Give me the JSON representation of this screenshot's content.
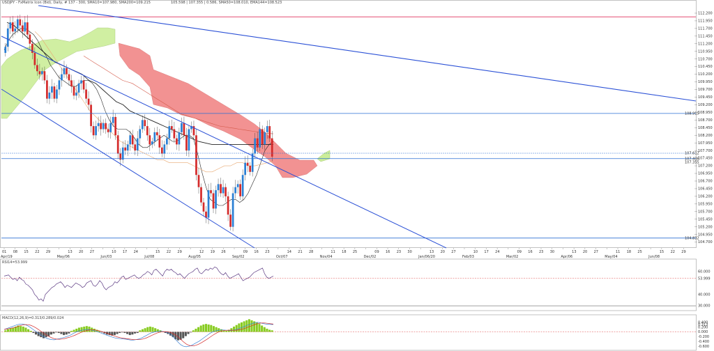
{
  "header": {
    "main": "USDJPY - FxMatrix Icon (Bid), Daily, # 137 - 300, SMA10=107.980, SMA200=109.215",
    "main_right": "105.598 | 107.355 | 0.586, SMA50=108.010, EMA144=108.523",
    "rsi": "RSI14=53.999",
    "macd": "MACD(12,26,9)=0.313/0.289/0.024"
  },
  "colors": {
    "candle_up": "#2a7fd4",
    "candle_down": "#d42a2a",
    "cloud_bull": "#ccee99",
    "cloud_bear": "#f08080",
    "trendline": "#2a50d6",
    "hline_red": "#e0305a",
    "hline_blue": "#2a6fd4",
    "rsi_line": "#5c3a82",
    "macd_line": "#3a7fd4",
    "signal_line": "#d42a2a",
    "hist_up": "#88cc22",
    "hist_down": "#555555"
  },
  "chart_data": [
    {
      "type": "candlestick",
      "name": "price",
      "date_labels": [
        "01",
        "08",
        "15",
        "22",
        "29",
        "May/06",
        "13",
        "20",
        "27",
        "Jun/03",
        "10",
        "17",
        "24",
        "Jul/08",
        "15",
        "22",
        "29",
        "Aug/05",
        "12",
        "19",
        "26",
        "Sep/02",
        "09",
        "16",
        "23",
        "Oct/07",
        "14",
        "21",
        "28",
        "Nov/04",
        "11",
        "18",
        "25",
        "Dec/02",
        "09",
        "16",
        "23",
        "30",
        "Jan/06/20",
        "13",
        "20",
        "27",
        "Feb/03",
        "10",
        "17",
        "24",
        "Mar/02",
        "09",
        "16",
        "23",
        "30",
        "Apr/06",
        "13",
        "20",
        "27",
        "May/04",
        "11",
        "18",
        "25",
        "Jun/08",
        "15",
        "22",
        "29"
      ],
      "x_range_label": "Apr/19",
      "y_ticks": [
        112.2,
        111.95,
        111.7,
        111.45,
        111.2,
        110.95,
        110.7,
        110.45,
        110.2,
        109.95,
        109.7,
        109.45,
        109.2,
        108.95,
        108.7,
        108.45,
        108.2,
        107.95,
        107.7,
        107.45,
        107.2,
        106.95,
        106.7,
        106.45,
        106.2,
        105.95,
        105.7,
        105.45,
        105.2,
        104.95,
        104.7
      ],
      "ylim": [
        104.6,
        112.45
      ],
      "price_labels": [
        "108.915",
        "107.612",
        "107.355",
        "107.436",
        "104.832"
      ],
      "closes": [
        111.1,
        111.7,
        111.9,
        111.6,
        111.7,
        112.0,
        111.8,
        111.6,
        111.9,
        111.5,
        111.2,
        110.9,
        110.5,
        110.3,
        110.2,
        110.3,
        110.0,
        109.4,
        109.6,
        109.8,
        109.4,
        109.7,
        110.0,
        110.2,
        110.4,
        110.2,
        110.0,
        109.8,
        109.5,
        109.6,
        109.9,
        110.0,
        109.7,
        109.4,
        109.2,
        108.5,
        108.2,
        108.5,
        108.6,
        108.4,
        108.6,
        108.4,
        108.3,
        108.6,
        108.8,
        108.2,
        107.6,
        107.4,
        107.8,
        107.7,
        107.9,
        108.2,
        107.9,
        107.7,
        108.1,
        108.4,
        108.7,
        108.5,
        108.2,
        107.9,
        108.0,
        108.3,
        108.2,
        107.8,
        107.6,
        107.9,
        108.1,
        108.5,
        108.4,
        108.1,
        107.9,
        108.3,
        108.6,
        108.2,
        107.7,
        108.4,
        108.5,
        108.2,
        106.9,
        106.5,
        106.0,
        105.7,
        105.5,
        106.4,
        106.3,
        105.8,
        106.4,
        106.6,
        106.3,
        106.5,
        106.2,
        105.6,
        105.2,
        106.3,
        106.5,
        106.6,
        106.2,
        106.9,
        107.3,
        107.2,
        107.0,
        107.6,
        108.1,
        107.8,
        108.4,
        107.9,
        108.3,
        108.5,
        108.1,
        107.5
      ],
      "sma_short": [
        111.0,
        111.3,
        111.5,
        111.6,
        111.7,
        111.7,
        111.6,
        111.5,
        111.3,
        111.0,
        110.8,
        110.5,
        110.3,
        110.1,
        110.0,
        109.9,
        109.8,
        109.8,
        109.9,
        110.0,
        110.0,
        109.9,
        109.7,
        109.4,
        109.0,
        108.7,
        108.5,
        108.4,
        108.4,
        108.4,
        108.3,
        108.1,
        107.9,
        107.8,
        107.8,
        107.9,
        108.0,
        108.1,
        108.2,
        108.1,
        108.0,
        108.0,
        108.1,
        108.2,
        108.2,
        108.1,
        107.6,
        107.0,
        106.5,
        106.1,
        106.0,
        105.9,
        105.9,
        106.0,
        106.1,
        106.1,
        106.0,
        106.1,
        106.3,
        106.6,
        106.9,
        107.3,
        107.7,
        107.9,
        108.0
      ],
      "sma_long": [
        111.9,
        111.8,
        111.6,
        111.4,
        111.2,
        111.0,
        110.8,
        110.6,
        110.5,
        110.4,
        110.3,
        110.2,
        110.0,
        109.9,
        109.7,
        109.5,
        109.3,
        109.2,
        109.0,
        108.9,
        108.8,
        108.7,
        108.6,
        108.5,
        108.4,
        108.3,
        108.2,
        108.1,
        108.0,
        107.95,
        107.9,
        107.9,
        107.9,
        107.9,
        107.9,
        107.9,
        107.9,
        107.9,
        107.9,
        107.9
      ],
      "ema_a": [
        110.8,
        110.7,
        110.6,
        110.5,
        110.4,
        110.3,
        110.2,
        110.1,
        110.0,
        109.95,
        109.9,
        109.8,
        109.7,
        109.6,
        109.5,
        109.4,
        109.3,
        109.2,
        109.1,
        109.0,
        108.9,
        108.85,
        108.8,
        108.75,
        108.7,
        108.65,
        108.6,
        108.55,
        108.5,
        108.48,
        108.45,
        108.43,
        108.4,
        108.38,
        108.35,
        108.33,
        108.3,
        108.28,
        108.26,
        108.25
      ],
      "ema_b": [
        111.6,
        111.4,
        111.1,
        110.8,
        110.5,
        110.2,
        109.9,
        109.6,
        109.3,
        109.0,
        108.8,
        108.6,
        108.4,
        108.2,
        108.0,
        107.9,
        107.8,
        107.7,
        107.6,
        107.5,
        107.4,
        107.4,
        107.3,
        107.3,
        107.3,
        107.3,
        107.2,
        107.1,
        107.0,
        107.0,
        107.1,
        107.2,
        107.2,
        107.3,
        107.3,
        107.2,
        107.2,
        107.25,
        107.3,
        107.35
      ]
    },
    {
      "type": "line",
      "name": "rsi",
      "y_ticks": [
        60.0,
        53.999,
        40.0,
        30.0
      ],
      "y_tick_labels": [
        "60.000",
        "53.999",
        "40.000",
        "30.000"
      ],
      "ylim": [
        27,
        66
      ],
      "values": [
        56,
        56.5,
        57,
        55,
        53,
        54,
        52,
        55,
        53,
        52,
        49,
        48,
        46,
        44,
        40,
        38,
        35,
        36,
        34,
        40,
        42,
        44,
        46,
        47,
        49,
        50,
        51,
        49,
        46,
        48,
        47,
        46,
        48,
        50,
        49,
        48,
        46,
        47,
        50,
        51,
        52,
        48,
        47,
        49,
        52,
        50,
        46,
        44,
        46,
        47,
        48,
        51,
        50,
        52,
        55,
        56,
        53,
        54,
        55,
        56,
        57,
        55,
        54,
        55,
        57,
        58,
        60,
        59,
        57,
        61,
        62,
        60,
        58,
        56,
        60,
        62,
        61,
        62,
        60,
        59,
        57,
        58,
        56,
        54,
        56,
        58,
        59,
        60,
        62,
        63,
        59,
        58,
        60,
        62,
        61,
        63,
        62,
        64,
        63,
        60,
        58,
        57,
        59,
        56,
        54,
        55,
        56,
        57,
        58,
        55,
        52,
        53,
        54,
        55,
        57,
        59,
        60,
        61,
        62,
        63,
        58,
        55,
        54,
        55,
        56
      ]
    },
    {
      "type": "bar",
      "name": "macd",
      "y_ticks": [
        0.4,
        0.313,
        0.2,
        0.0,
        -0.2,
        -0.4,
        -0.6
      ],
      "y_tick_labels": [
        "0.400",
        "0.313",
        "0.200",
        "0.000",
        "-0.200",
        "-0.400",
        "-0.600"
      ],
      "ylim": [
        -0.68,
        0.48
      ],
      "hist": [
        0.03,
        0.05,
        0.07,
        0.08,
        0.1,
        0.12,
        0.11,
        0.1,
        0.08,
        0.05,
        0.02,
        -0.02,
        -0.05,
        -0.08,
        -0.1,
        -0.12,
        -0.1,
        -0.08,
        -0.05,
        -0.03,
        -0.01,
        -0.02,
        -0.04,
        -0.06,
        -0.05,
        -0.03,
        0.02,
        0.04,
        0.06,
        0.08,
        0.09,
        0.1,
        0.11,
        0.1,
        0.08,
        0.06,
        0.04,
        0.02,
        -0.01,
        -0.03,
        -0.05,
        -0.06,
        -0.07,
        -0.06,
        -0.04,
        -0.02,
        -0.01,
        -0.02,
        -0.04,
        -0.06,
        -0.05,
        -0.03,
        -0.02,
        0.03,
        0.05,
        0.07,
        0.09,
        0.1,
        0.09,
        0.07,
        0.05,
        0.03,
        0.01,
        -0.02,
        -0.04,
        -0.07,
        -0.1,
        -0.14,
        -0.16,
        -0.15,
        -0.12,
        -0.08,
        -0.04,
        -0.01,
        0.03,
        0.06,
        0.09,
        0.12,
        0.14,
        0.15,
        0.14,
        0.13,
        0.11,
        0.09,
        0.07,
        0.05,
        0.03,
        0.02,
        0.04,
        0.07,
        0.1,
        0.13,
        0.16,
        0.18,
        0.2,
        0.22,
        0.24,
        0.22,
        0.2,
        0.18,
        0.15,
        0.12,
        0.09,
        0.06,
        0.04,
        0.03
      ],
      "macd": [
        0.1,
        0.14,
        0.18,
        0.22,
        0.26,
        0.3,
        0.32,
        0.33,
        0.3,
        0.25,
        0.18,
        0.1,
        0.02,
        -0.06,
        -0.14,
        -0.2,
        -0.26,
        -0.3,
        -0.32,
        -0.33,
        -0.3,
        -0.28,
        -0.25,
        -0.22,
        -0.18,
        -0.14,
        -0.08,
        -0.02,
        0.03,
        0.06,
        0.08,
        0.1,
        0.1,
        0.08,
        0.05,
        0.02,
        -0.02,
        -0.06,
        -0.1,
        -0.14,
        -0.18,
        -0.22,
        -0.25,
        -0.27,
        -0.28,
        -0.29,
        -0.3,
        -0.32,
        -0.34,
        -0.34,
        -0.32,
        -0.3,
        -0.26,
        -0.2,
        -0.14,
        -0.08,
        -0.03,
        0.0,
        0.02,
        0.03,
        0.02,
        0.0,
        -0.04,
        -0.1,
        -0.2,
        -0.32,
        -0.44,
        -0.54,
        -0.6,
        -0.62,
        -0.6,
        -0.56,
        -0.5,
        -0.44,
        -0.38,
        -0.3,
        -0.22,
        -0.14,
        -0.06,
        0.0,
        0.04,
        0.06,
        0.08,
        0.08,
        0.07,
        0.06,
        0.06,
        0.07,
        0.1,
        0.14,
        0.18,
        0.22,
        0.27,
        0.31,
        0.35,
        0.38,
        0.4,
        0.38,
        0.35,
        0.33,
        0.32,
        0.31,
        0.31
      ]
    }
  ]
}
